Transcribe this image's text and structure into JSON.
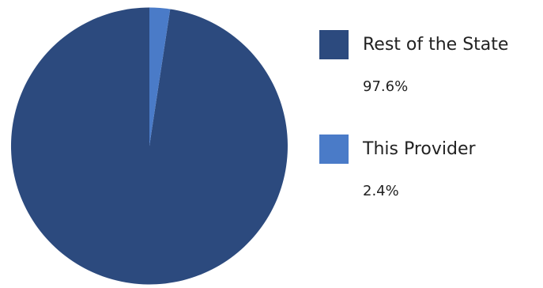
{
  "chart_data": {
    "type": "pie",
    "slices": [
      {
        "label": "Rest of the State",
        "value": 97.6,
        "display": "97.6%",
        "color": "#2c4a7e"
      },
      {
        "label": "This Provider",
        "value": 2.4,
        "display": "2.4%",
        "color": "#4a7bc8"
      }
    ],
    "start_angle_deg": 0,
    "direction": "counterclockwise",
    "legend_position": "right"
  }
}
